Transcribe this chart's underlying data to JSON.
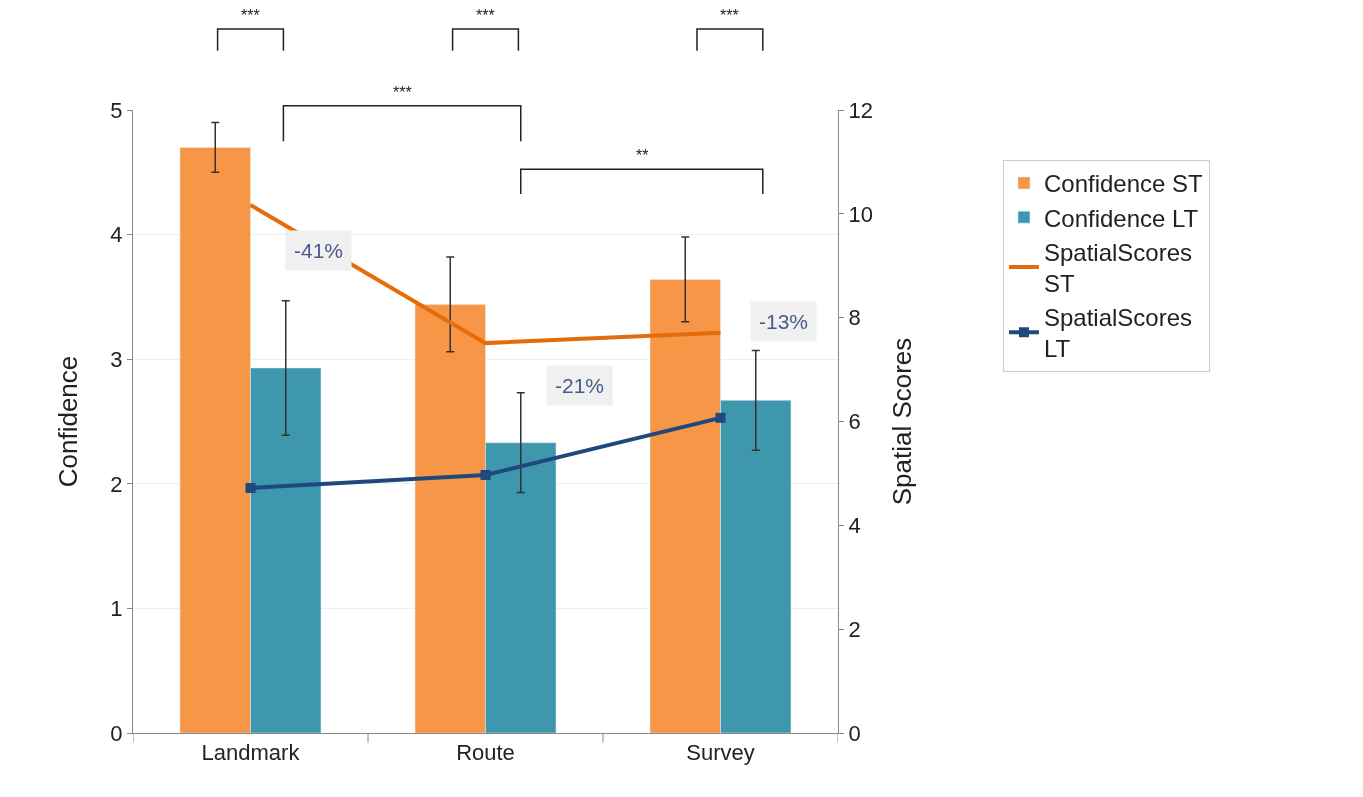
{
  "chart_data": {
    "type": "bar",
    "categories": [
      "Landmark",
      "Route",
      "Survey"
    ],
    "ylabel": "Confidence",
    "y2label": "Spatial Scores",
    "ylim": [
      0,
      5
    ],
    "yticks": [
      0,
      1,
      2,
      3,
      4,
      5
    ],
    "y2lim": [
      0,
      12
    ],
    "y2ticks": [
      0,
      2,
      4,
      6,
      8,
      10,
      12
    ],
    "grid": "y",
    "legend": "right",
    "series": [
      {
        "name": "Confidence ST",
        "color": "#f79646",
        "values": [
          4.7,
          3.44,
          3.64
        ],
        "errors": [
          0.2,
          0.38,
          0.34
        ]
      },
      {
        "name": "Confidence LT",
        "color": "#3f97ad",
        "values": [
          2.93,
          2.33,
          2.67
        ],
        "errors": [
          0.54,
          0.4,
          0.4
        ]
      },
      {
        "name": "SpatialScores ST",
        "type": "line",
        "axis": "y2",
        "color": "#e46c0a",
        "marker": "none",
        "values": [
          10.17,
          7.51,
          7.71
        ]
      },
      {
        "name": "SpatialScores LT",
        "type": "line",
        "axis": "y2",
        "color": "#1f497d",
        "marker": "square",
        "values": [
          4.72,
          4.97,
          6.07
        ]
      }
    ],
    "annotations": [
      "***",
      "***",
      "***",
      "***",
      "**",
      "-41%",
      "-21%",
      "-13%"
    ]
  }
}
